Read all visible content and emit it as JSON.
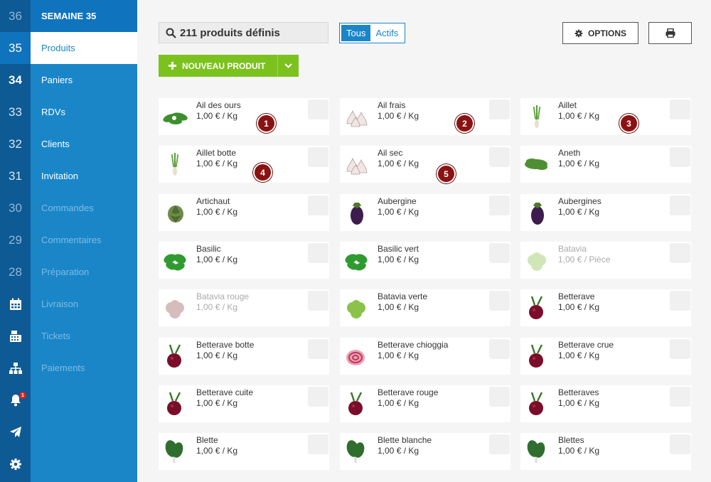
{
  "rail": {
    "weeks": [
      "36",
      "35",
      "34",
      "33",
      "32",
      "31",
      "30",
      "29",
      "28"
    ],
    "icons": [
      "calendar-icon",
      "cash-register-icon",
      "sitemap-icon",
      "bell-icon",
      "paper-plane-icon",
      "gear-icon"
    ],
    "notification_count": "1"
  },
  "menu": {
    "header": "SEMAINE 35",
    "items": [
      "Produits",
      "Paniers",
      "RDVs",
      "Clients",
      "Invitation",
      "Commandes",
      "Commentaires",
      "Préparation",
      "Livraison",
      "Tickets",
      "Paiements"
    ]
  },
  "toolbar": {
    "search_label": "211 produits définis",
    "filter_all": "Tous",
    "filter_active": "Actifs",
    "options_label": "OPTIONS",
    "new_product_label": "NOUVEAU PRODUIT"
  },
  "colors": {
    "accent": "#1a86c8",
    "dark_rail": "#0d5a94",
    "green": "#7cc21e",
    "badge": "#8b1212"
  },
  "products": [
    {
      "name": "Ail des ours",
      "price": "1,00 € / Kg",
      "icon": "leaves",
      "active": true
    },
    {
      "name": "Ail frais",
      "price": "1,00 € / Kg",
      "icon": "garlic",
      "active": true
    },
    {
      "name": "Aillet",
      "price": "1,00 € / Kg",
      "icon": "leek",
      "active": true
    },
    {
      "name": "Aillet botte",
      "price": "1,00 € / Kg",
      "icon": "leek",
      "active": true
    },
    {
      "name": "Ail sec",
      "price": "1,00 € / Kg",
      "icon": "garlic",
      "active": true
    },
    {
      "name": "Aneth",
      "price": "1,00 € / Kg",
      "icon": "herb",
      "active": true
    },
    {
      "name": "Artichaut",
      "price": "1,00 € / Kg",
      "icon": "artichoke",
      "active": true
    },
    {
      "name": "Aubergine",
      "price": "1,00 € / Kg",
      "icon": "eggplant",
      "active": true
    },
    {
      "name": "Aubergines",
      "price": "1,00 € / Kg",
      "icon": "eggplant",
      "active": true
    },
    {
      "name": "Basilic",
      "price": "1,00 € / Kg",
      "icon": "basil",
      "active": true
    },
    {
      "name": "Basilic vert",
      "price": "1,00 € / Kg",
      "icon": "basil",
      "active": true
    },
    {
      "name": "Batavia",
      "price": "1,00 € / Pièce",
      "icon": "lettuce",
      "active": false
    },
    {
      "name": "Batavia rouge",
      "price": "1,00 € / Kg",
      "icon": "lettuce-red",
      "active": false
    },
    {
      "name": "Batavia verte",
      "price": "1,00 € / Kg",
      "icon": "lettuce",
      "active": true
    },
    {
      "name": "Betterave",
      "price": "1,00 € / Kg",
      "icon": "beet",
      "active": true
    },
    {
      "name": "Betterave botte",
      "price": "1,00 € / Kg",
      "icon": "beet",
      "active": true
    },
    {
      "name": "Betterave chioggia",
      "price": "1,00 € / Kg",
      "icon": "beet-slice",
      "active": true
    },
    {
      "name": "Betterave crue",
      "price": "1,00 € / Kg",
      "icon": "beet",
      "active": true
    },
    {
      "name": "Betterave cuite",
      "price": "1,00 € / Kg",
      "icon": "beet",
      "active": true
    },
    {
      "name": "Betterave rouge",
      "price": "1,00 € / Kg",
      "icon": "beet",
      "active": true
    },
    {
      "name": "Betteraves",
      "price": "1,00 € / Kg",
      "icon": "beet",
      "active": true
    },
    {
      "name": "Blette",
      "price": "1,00 € / Kg",
      "icon": "chard",
      "active": true
    },
    {
      "name": "Blette blanche",
      "price": "1,00 € / Kg",
      "icon": "chard",
      "active": true
    },
    {
      "name": "Blettes",
      "price": "1,00 € / Kg",
      "icon": "chard",
      "active": true
    }
  ],
  "badges": [
    "1",
    "2",
    "3",
    "4",
    "5"
  ]
}
